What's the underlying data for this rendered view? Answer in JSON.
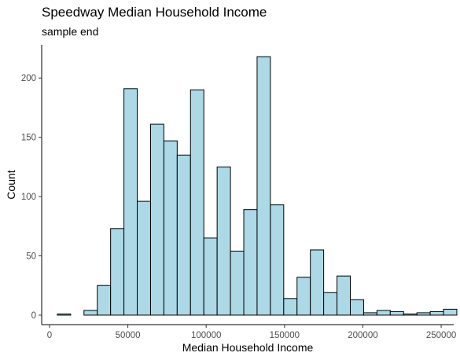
{
  "chart_data": {
    "type": "bar",
    "title": "Speedway Median Household Income",
    "subtitle": "sample end",
    "xlabel": "Median Household Income",
    "ylabel": "Count",
    "x_tick_labels": [
      "0",
      "50000",
      "100000",
      "150000",
      "200000",
      "250000"
    ],
    "y_tick_labels": [
      "0",
      "50",
      "100",
      "150",
      "200"
    ],
    "xlim": [
      -5000,
      258000
    ],
    "ylim": [
      -8,
      228
    ],
    "bin_width": 8500,
    "bin_start": 5000,
    "values": [
      1,
      0,
      4,
      25,
      73,
      191,
      96,
      161,
      147,
      135,
      190,
      65,
      125,
      54,
      89,
      218,
      93,
      14,
      32,
      55,
      19,
      33,
      13,
      2,
      4,
      3,
      1,
      2,
      3,
      5
    ],
    "fill_color": "#ADD8E6",
    "edge_color": "#000000",
    "grid": false
  }
}
